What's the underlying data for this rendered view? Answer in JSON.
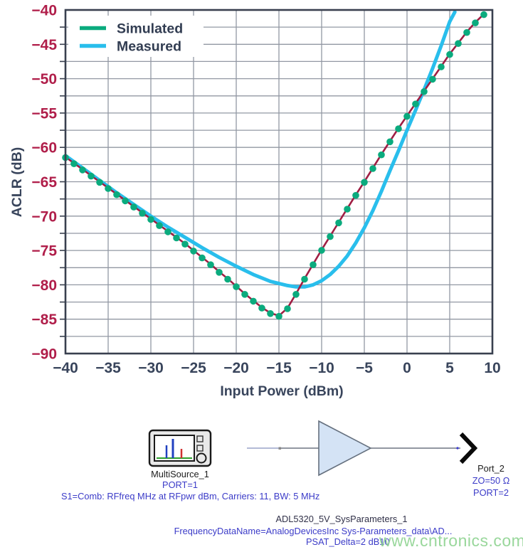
{
  "chart_data": {
    "type": "line",
    "title": "",
    "xlabel": "Input Power (dBm)",
    "ylabel": "ACLR (dB)",
    "xlim": [
      -40,
      10
    ],
    "ylim": [
      -90,
      -40
    ],
    "xticks": [
      -40,
      -35,
      -30,
      -25,
      -20,
      -15,
      -10,
      -5,
      0,
      5,
      10
    ],
    "xtick_labels": [
      "−40",
      "−35",
      "−30",
      "−25",
      "−20",
      "−15",
      "−10",
      "−5",
      "0",
      "5",
      "10"
    ],
    "yticks": [
      -40,
      -45,
      -50,
      -55,
      -60,
      -65,
      -70,
      -75,
      -80,
      -85,
      -90
    ],
    "ytick_labels": [
      "−40",
      "−45",
      "−50",
      "−55",
      "−60",
      "−65",
      "−70",
      "−75",
      "−80",
      "−85",
      "−90"
    ],
    "x_grid_step": 5,
    "y_grid_step": 2.5,
    "y_tick_step": 2.5,
    "grid": true,
    "legend_position": "top-left",
    "colors": {
      "grid": "#9298a3",
      "border": "#39404f",
      "x_tick_label": "#39455c",
      "y_tick_label": "#b01e4a",
      "axis_title": "#39455c",
      "legend_text": "#323d52",
      "legend_bg": "#ffffff"
    },
    "series": [
      {
        "name": "Simulated",
        "color": "#0bab7e",
        "line_color": "#a01e43",
        "marker": "circle",
        "x": [
          -40,
          -39,
          -38,
          -37,
          -36,
          -35,
          -34,
          -33,
          -32,
          -31,
          -30,
          -29,
          -28,
          -27,
          -26,
          -25,
          -24,
          -23,
          -22,
          -21,
          -20,
          -19,
          -18,
          -17,
          -16,
          -15,
          -14,
          -13,
          -12,
          -11,
          -10,
          -9,
          -8,
          -7,
          -6,
          -5,
          -4,
          -3,
          -2,
          -1,
          0,
          1,
          2,
          3,
          4,
          5,
          6,
          7,
          8,
          9
        ],
        "y": [
          -61.4,
          -62.3,
          -63.2,
          -64.1,
          -65.0,
          -65.9,
          -66.8,
          -67.7,
          -68.6,
          -69.5,
          -70.4,
          -71.3,
          -72.2,
          -73.1,
          -74.0,
          -75.0,
          -76.0,
          -77.0,
          -78.1,
          -79.1,
          -80.2,
          -81.3,
          -82.3,
          -83.3,
          -84.1,
          -84.5,
          -83.4,
          -81.3,
          -79.1,
          -77.0,
          -74.9,
          -72.9,
          -70.9,
          -68.9,
          -66.9,
          -65.0,
          -63.0,
          -61.0,
          -59.1,
          -57.2,
          -55.4,
          -53.6,
          -51.8,
          -50.0,
          -48.2,
          -46.4,
          -44.8,
          -43.2,
          -41.8,
          -40.6
        ]
      },
      {
        "name": "Measured",
        "color": "#29beec",
        "marker": "none",
        "x": [
          -40,
          -38,
          -36,
          -34,
          -32,
          -30,
          -28,
          -26,
          -24,
          -22,
          -20,
          -18,
          -16,
          -14,
          -13,
          -12,
          -11,
          -10,
          -9,
          -8,
          -7,
          -6,
          -5,
          -4,
          -3,
          -2,
          -1,
          0,
          1,
          2,
          3,
          4,
          5,
          5.6
        ],
        "y": [
          -61.2,
          -63.0,
          -64.8,
          -66.6,
          -68.3,
          -70.0,
          -71.6,
          -73.1,
          -74.6,
          -76.0,
          -77.3,
          -78.5,
          -79.5,
          -80.1,
          -80.3,
          -80.3,
          -80.0,
          -79.4,
          -78.5,
          -77.3,
          -75.8,
          -73.9,
          -71.7,
          -69.2,
          -66.4,
          -63.4,
          -60.5,
          -57.5,
          -54.6,
          -51.6,
          -48.5,
          -45.2,
          -41.7,
          -40.3
        ]
      }
    ]
  },
  "schematic": {
    "source": {
      "name": "MultiSource_1",
      "port": "PORT=1",
      "params": "S1=Comb: RFfreq MHz at RFpwr dBm, Carriers: 11, BW: 5 MHz"
    },
    "amplifier": {
      "name": "ADL5320_5V_SysParameters_1",
      "param_frequency": "FrequencyDataName=AnalogDevicesInc Sys-Parameters_data\\AD...",
      "param_psat": "PSAT_Delta=2 dB10"
    },
    "port": {
      "name": "Port_2",
      "impedance": "ZO=50 Ω",
      "port": "PORT=2"
    },
    "colors": {
      "blue_text": "#3b3bc8",
      "dark_text": "#1c1c1c",
      "triangle_fill": "#d4e3f5",
      "triangle_stroke": "#65707e",
      "wire": "#6f7582"
    }
  },
  "watermark": {
    "text": "www.cntronics.com",
    "color": "#8ed391"
  }
}
